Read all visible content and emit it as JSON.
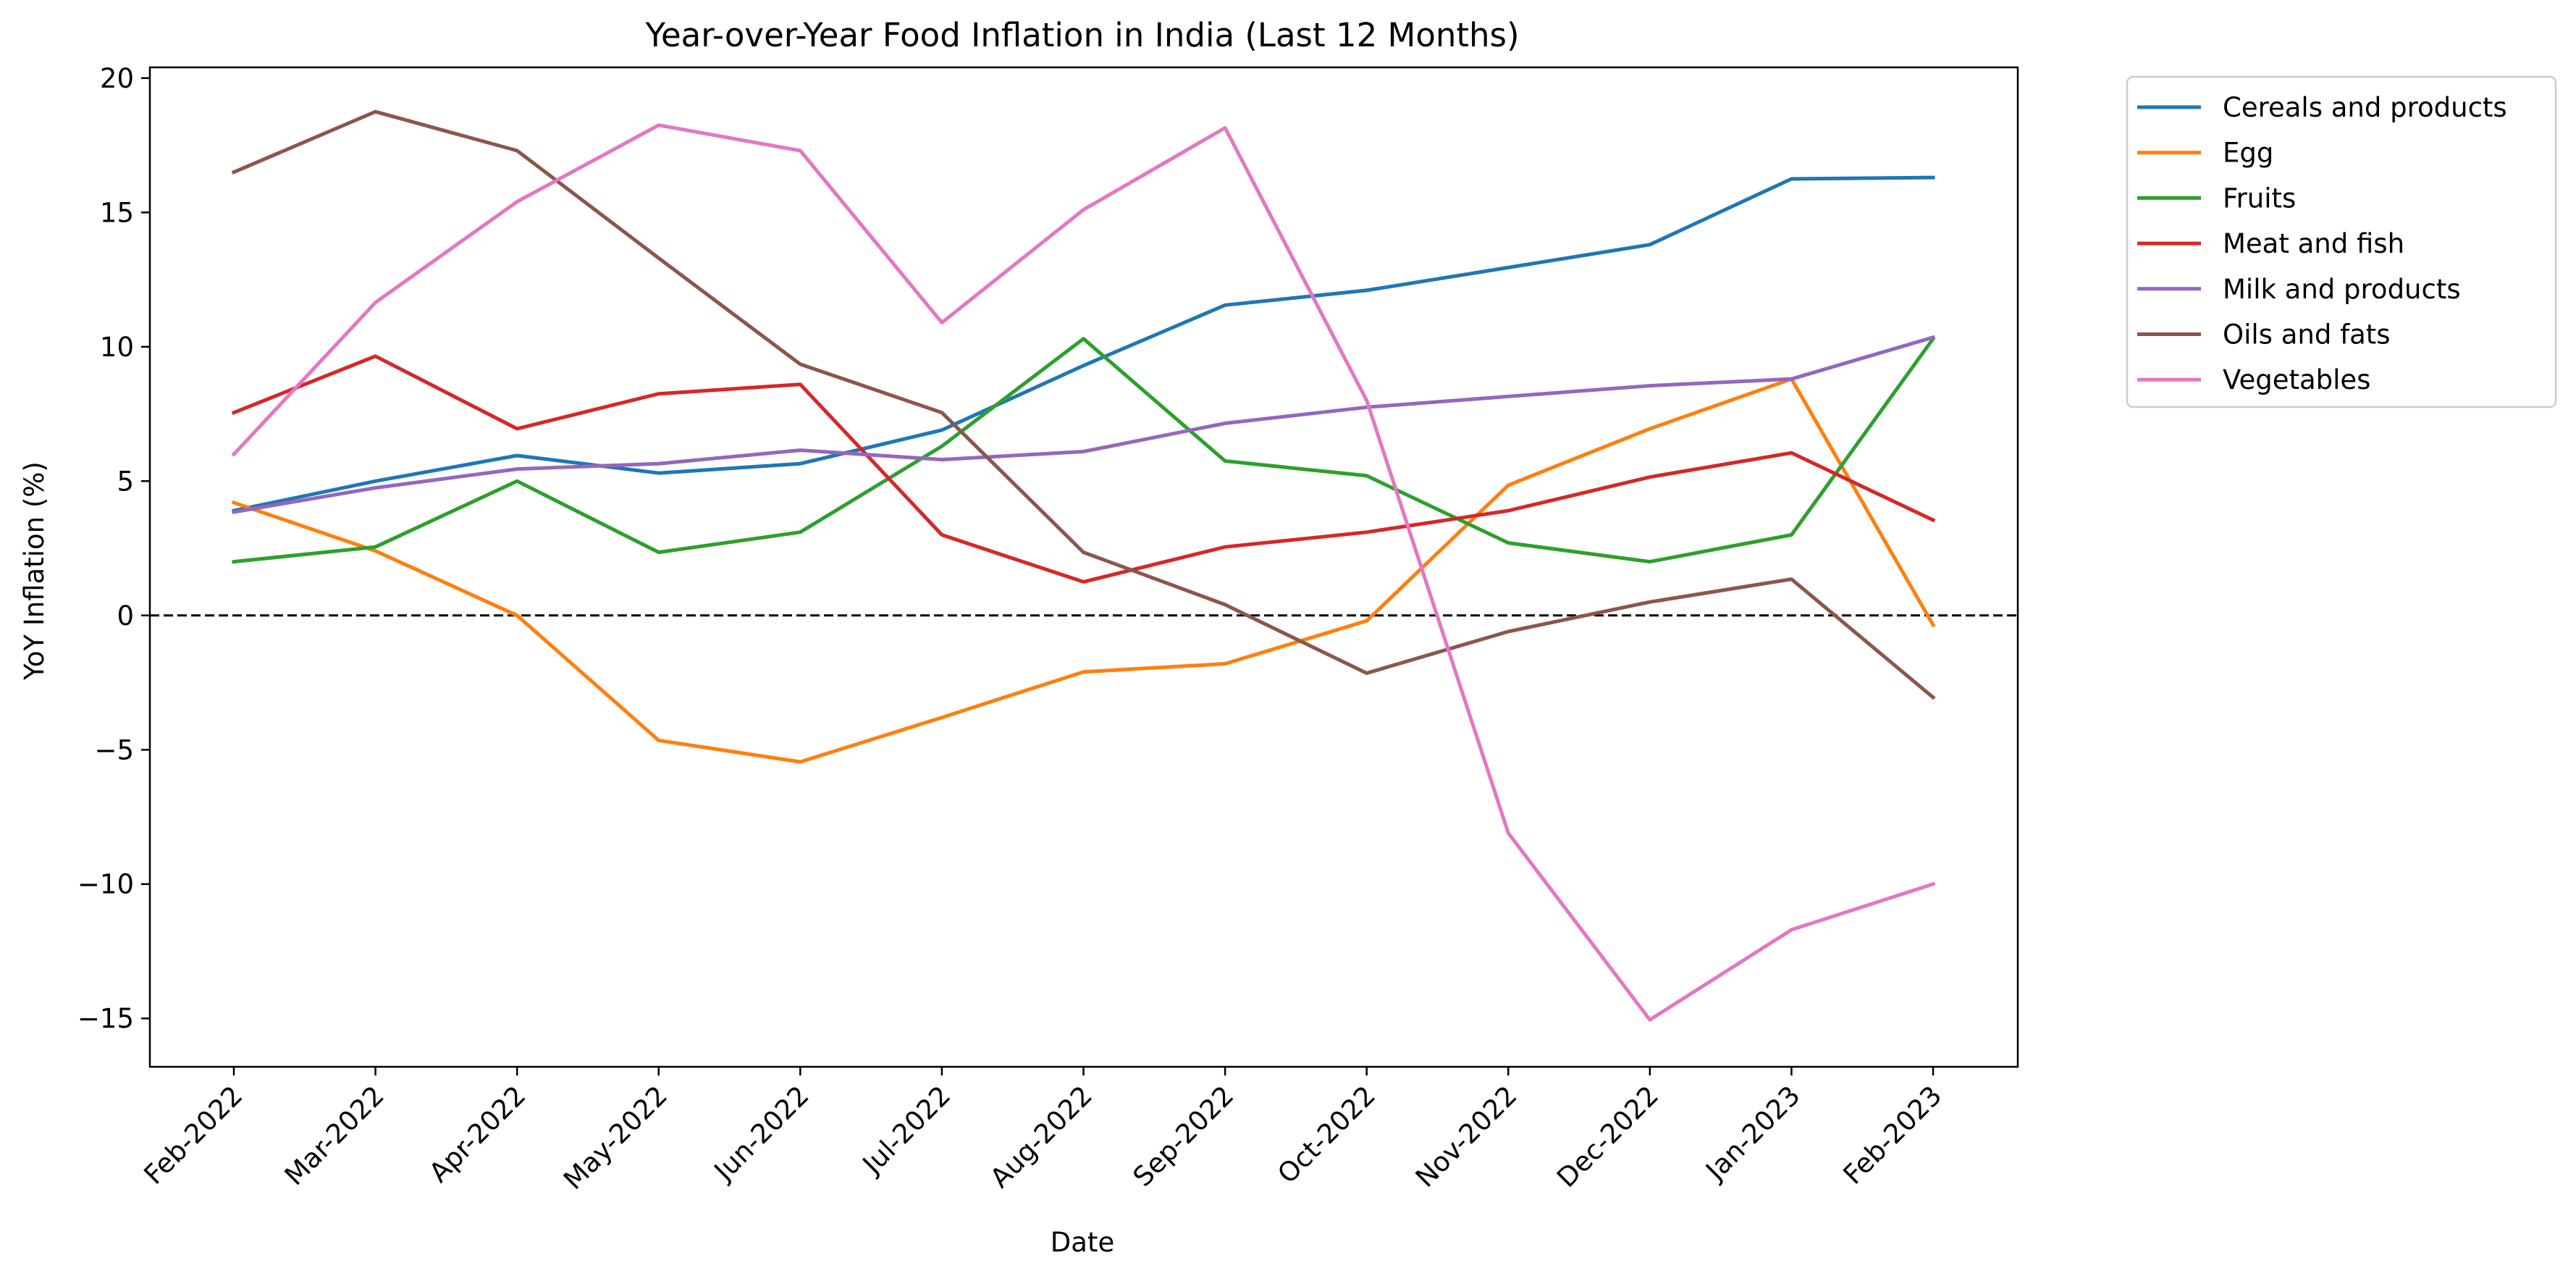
{
  "chart_data": {
    "type": "line",
    "title": "Year-over-Year Food Inflation in India (Last 12 Months)",
    "xlabel": "Date",
    "ylabel": "YoY Inflation (%)",
    "categories": [
      "Feb-2022",
      "Mar-2022",
      "Apr-2022",
      "May-2022",
      "Jun-2022",
      "Jul-2022",
      "Aug-2022",
      "Sep-2022",
      "Oct-2022",
      "Nov-2022",
      "Dec-2022",
      "Jan-2023",
      "Feb-2023"
    ],
    "x_dates": [
      "2022-02-01",
      "2022-03-01",
      "2022-04-01",
      "2022-05-01",
      "2022-06-01",
      "2022-07-01",
      "2022-08-01",
      "2022-09-01",
      "2022-10-01",
      "2022-11-01",
      "2022-12-01",
      "2023-01-01",
      "2023-02-01"
    ],
    "ylim": [
      -16.8,
      20.4
    ],
    "yticks": [
      -15,
      -10,
      -5,
      0,
      5,
      10,
      15,
      20
    ],
    "ytick_labels": [
      "−15",
      "−10",
      "−5",
      "0",
      "5",
      "10",
      "15",
      "20"
    ],
    "reference_line": {
      "y": 0,
      "style": "dashed",
      "color": "#000000"
    },
    "grid": false,
    "legend_position": "outside-right",
    "series": [
      {
        "name": "Cereals and products",
        "color": "#1f77b4",
        "values": [
          3.9,
          5.0,
          5.95,
          5.3,
          5.65,
          6.9,
          9.3,
          11.55,
          12.1,
          12.95,
          13.8,
          16.25,
          16.3
        ]
      },
      {
        "name": "Egg",
        "color": "#ff7f0e",
        "values": [
          4.2,
          2.4,
          0.0,
          -4.65,
          -5.45,
          -3.8,
          -2.1,
          -1.8,
          -0.2,
          4.85,
          6.95,
          8.8,
          -0.35
        ]
      },
      {
        "name": "Fruits",
        "color": "#2ca02c",
        "values": [
          2.0,
          2.55,
          5.0,
          2.35,
          3.1,
          6.3,
          10.3,
          5.75,
          5.2,
          2.7,
          2.0,
          3.0,
          10.3
        ]
      },
      {
        "name": "Meat and fish",
        "color": "#d62728",
        "values": [
          7.55,
          9.65,
          6.95,
          8.25,
          8.6,
          3.0,
          1.25,
          2.55,
          3.1,
          3.9,
          5.15,
          6.05,
          3.55
        ]
      },
      {
        "name": "Milk and products",
        "color": "#9467bd",
        "values": [
          3.85,
          4.75,
          5.45,
          5.65,
          6.15,
          5.8,
          6.1,
          7.15,
          7.75,
          8.15,
          8.55,
          8.8,
          10.35
        ]
      },
      {
        "name": "Oils and fats",
        "color": "#8c564b",
        "values": [
          16.5,
          18.75,
          17.3,
          13.3,
          9.35,
          7.55,
          2.35,
          0.4,
          -2.15,
          -0.6,
          0.5,
          1.35,
          -3.05
        ]
      },
      {
        "name": "Vegetables",
        "color": "#e377c2",
        "values": [
          6.0,
          11.65,
          15.4,
          18.25,
          17.3,
          10.9,
          15.1,
          18.15,
          8.0,
          -8.1,
          -15.05,
          -11.7,
          -10.0
        ]
      }
    ]
  }
}
